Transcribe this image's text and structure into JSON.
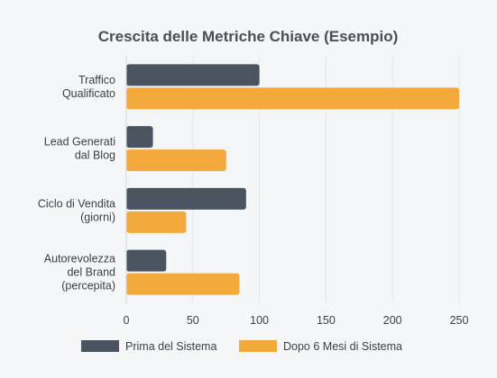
{
  "chart_data": {
    "type": "bar",
    "orientation": "horizontal",
    "title": "Crescita delle Metriche Chiave (Esempio)",
    "categories": [
      [
        "Traffico",
        "Qualificato"
      ],
      [
        "Lead Generati",
        "dal Blog"
      ],
      [
        "Ciclo di Vendita",
        "(giorni)"
      ],
      [
        "Autorevolezza",
        "del Brand",
        "(percepita)"
      ]
    ],
    "series": [
      {
        "name": "Prima del Sistema",
        "color": "#4a5360",
        "values": [
          100,
          20,
          90,
          30
        ]
      },
      {
        "name": "Dopo 6 Mesi di Sistema",
        "color": "#f3a93c",
        "values": [
          250,
          75,
          45,
          85
        ]
      }
    ],
    "xlim": [
      0,
      250
    ],
    "xticks": [
      0,
      50,
      100,
      150,
      200,
      250
    ],
    "grid": true,
    "legend": "bottom",
    "xlabel": "",
    "ylabel": "",
    "colors": {
      "background": "#f5f6f8",
      "grid": "#e3e6ea",
      "text": "#3a3f47",
      "title": "#4a4f57"
    }
  }
}
